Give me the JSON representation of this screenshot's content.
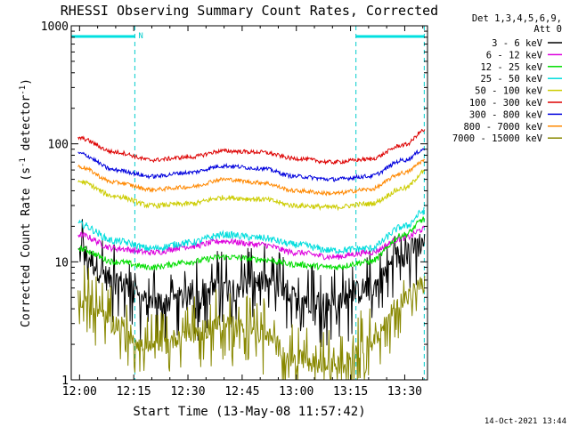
{
  "chart_data": {
    "type": "line",
    "title": "RHESSI Observing Summary Count Rates, Corrected",
    "xlabel": "Start Time (13-May-08 11:57:42)",
    "ylabel_main": "Corrected Count Rate (s",
    "ylabel_sup1": "-1",
    "ylabel_mid": " detector",
    "ylabel_sup2": "-1",
    "ylabel_end": ")",
    "y_scale": "log",
    "ylim": [
      1,
      1000
    ],
    "xlim_minutes": [
      -2.3,
      96.3
    ],
    "x_ticks": [
      {
        "min": 0,
        "label": "12:00"
      },
      {
        "min": 15,
        "label": "12:15"
      },
      {
        "min": 30,
        "label": "12:30"
      },
      {
        "min": 45,
        "label": "12:45"
      },
      {
        "min": 60,
        "label": "13:00"
      },
      {
        "min": 75,
        "label": "13:15"
      },
      {
        "min": 90,
        "label": "13:30"
      }
    ],
    "y_ticks": [
      {
        "value": 1,
        "label": "1"
      },
      {
        "value": 10,
        "label": "10"
      },
      {
        "value": 100,
        "label": "100"
      },
      {
        "value": 1000,
        "label": "1000"
      }
    ],
    "legend_header": [
      "Det 1,3,4,5,6,9,",
      "Att 0"
    ],
    "legend_position": "right",
    "footer_date": "14-Oct-2021 13:44",
    "night_intervals_minutes": [
      [
        -2.3,
        15.3
      ],
      [
        76.5,
        95.4
      ]
    ],
    "flag_label": "N",
    "x_sample_minutes": [
      -0.4,
      10,
      20,
      30,
      40,
      50,
      60,
      70,
      80,
      90,
      95.5
    ],
    "series": [
      {
        "name": "3 - 6 keV",
        "color": "#000000",
        "y": [
          12,
          7,
          4.5,
          5,
          6,
          7,
          5,
          4.5,
          6,
          12,
          15
        ],
        "noise": 0.25,
        "bursty": true
      },
      {
        "name": "6 - 12 keV",
        "color": "#dd00dd",
        "y": [
          17,
          13,
          12,
          13.5,
          15,
          14,
          12,
          11,
          12,
          16,
          19
        ],
        "noise": 0.06
      },
      {
        "name": "12 - 25 keV",
        "color": "#00dd00",
        "y": [
          13,
          10,
          9,
          10,
          11,
          10.5,
          9.5,
          9,
          10,
          17,
          23
        ],
        "noise": 0.06
      },
      {
        "name": "25 - 50 keV",
        "color": "#00dddd",
        "y": [
          21,
          15,
          13,
          14.5,
          17,
          16,
          14,
          12.5,
          13,
          20,
          27
        ],
        "noise": 0.07
      },
      {
        "name": "50 - 100 keV",
        "color": "#cccc00",
        "y": [
          48,
          36,
          30,
          31,
          35,
          34,
          30,
          29,
          31,
          42,
          58
        ],
        "noise": 0.05
      },
      {
        "name": "100 - 300 keV",
        "color": "#dd0000",
        "y": [
          112,
          85,
          73,
          77,
          87,
          85,
          75,
          70,
          74,
          98,
          130
        ],
        "noise": 0.04
      },
      {
        "name": "300 - 800 keV",
        "color": "#0000dd",
        "y": [
          83,
          60,
          53,
          57,
          65,
          62,
          53,
          50,
          53,
          73,
          90
        ],
        "noise": 0.04
      },
      {
        "name": "800 - 7000 keV",
        "color": "#ff8800",
        "y": [
          64,
          47,
          41,
          43,
          50,
          47,
          40,
          38,
          41,
          57,
          72
        ],
        "noise": 0.04
      },
      {
        "name": "7000 - 15000 keV",
        "color": "#888800",
        "y": [
          5,
          3,
          1.8,
          2.5,
          3,
          2.5,
          1.5,
          1.3,
          2,
          5,
          6.5
        ],
        "noise": 0.2,
        "bursty": true
      }
    ]
  }
}
